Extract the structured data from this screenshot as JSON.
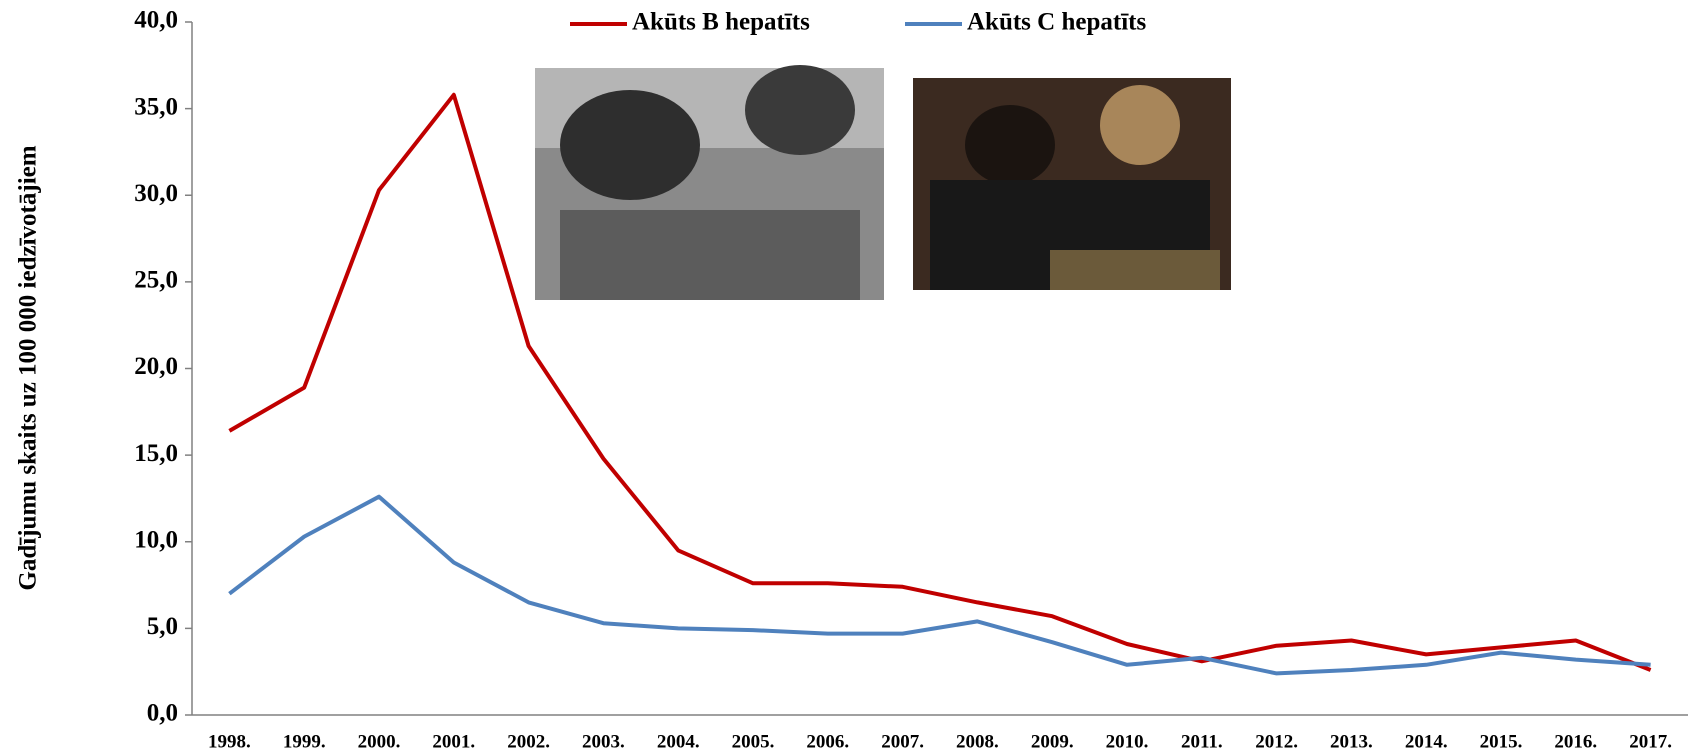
{
  "chart_data": {
    "type": "line",
    "y_label": "Gadījumu skaits uz 100 000 iedzīvotājiem",
    "categories": [
      "1998.",
      "1999.",
      "2000.",
      "2001.",
      "2002.",
      "2003.",
      "2004.",
      "2005.",
      "2006.",
      "2007.",
      "2008.",
      "2009.",
      "2010.",
      "2011.",
      "2012.",
      "2013.",
      "2014.",
      "2015.",
      "2016.",
      "2017."
    ],
    "series": [
      {
        "name": "Akūts B hepatīts",
        "color": "#c00000",
        "values": [
          16.4,
          18.9,
          30.3,
          35.8,
          21.3,
          14.8,
          9.5,
          7.6,
          7.6,
          7.4,
          6.5,
          5.7,
          4.1,
          3.1,
          4.0,
          4.3,
          3.5,
          3.9,
          4.3,
          2.6
        ]
      },
      {
        "name": "Akūts C hepatīts",
        "color": "#4f81bd",
        "values": [
          7.0,
          10.3,
          12.6,
          8.8,
          6.5,
          5.3,
          5.0,
          4.9,
          4.7,
          4.7,
          5.4,
          4.2,
          2.9,
          3.3,
          2.4,
          2.6,
          2.9,
          3.6,
          3.2,
          2.9
        ]
      }
    ],
    "ylim": [
      0,
      40
    ],
    "yticks": [
      {
        "value": 0,
        "label": "0,0"
      },
      {
        "value": 5,
        "label": "5,0"
      },
      {
        "value": 10,
        "label": "10,0"
      },
      {
        "value": 15,
        "label": "15,0"
      },
      {
        "value": 20,
        "label": "20,0"
      },
      {
        "value": 25,
        "label": "25,0"
      },
      {
        "value": 30,
        "label": "30,0"
      },
      {
        "value": 35,
        "label": "35,0"
      },
      {
        "value": 40,
        "label": "40,0"
      }
    ],
    "legend": "top"
  }
}
